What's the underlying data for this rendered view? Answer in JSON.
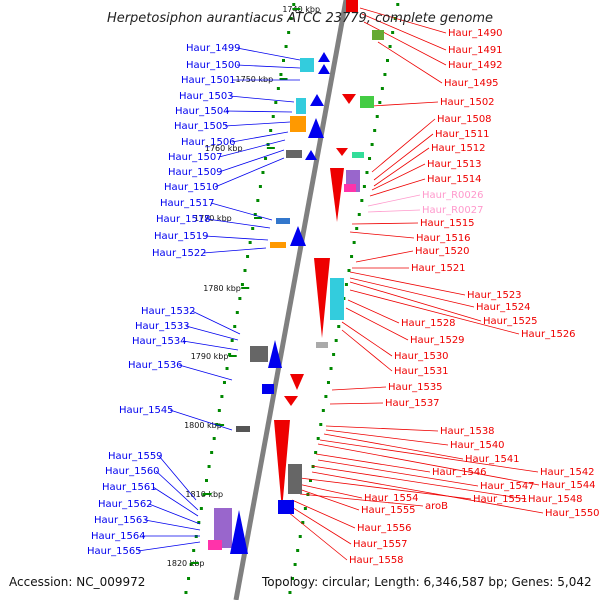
{
  "title": "Herpetosiphon aurantiacus ATCC 23779, complete genome",
  "footer": {
    "accession": "Accession: NC_009972",
    "summary": "Topology: circular; Length: 6,346,587 bp; Genes: 5,042"
  },
  "ruler": [
    "1740 kbp",
    "1750 kbp",
    "1760 kbp",
    "1770 kbp",
    "1780 kbp",
    "1790 kbp",
    "1800 kbp",
    "1810 kbp",
    "1820 kbp"
  ],
  "colors": {
    "reverse_strand": "#0000ee",
    "forward_strand": "#ee0000",
    "rna": "#ff99cc",
    "backbone": "#808080",
    "tick": "#008800"
  },
  "left_genes": [
    "Haur_1499",
    "Haur_1500",
    "Haur_1501",
    "Haur_1503",
    "Haur_1504",
    "Haur_1505",
    "Haur_1506",
    "Haur_1507",
    "Haur_1509",
    "Haur_1510",
    "Haur_1517",
    "Haur_1518",
    "Haur_1519",
    "Haur_1522",
    "Haur_1532",
    "Haur_1533",
    "Haur_1534",
    "Haur_1536",
    "Haur_1545",
    "Haur_1559",
    "Haur_1560",
    "Haur_1561",
    "Haur_1562",
    "Haur_1563",
    "Haur_1564",
    "Haur_1565"
  ],
  "right_genes": [
    "Haur_1490",
    "Haur_1491",
    "Haur_1492",
    "Haur_1495",
    "Haur_1502",
    "Haur_1508",
    "Haur_1511",
    "Haur_1512",
    "Haur_1513",
    "Haur_1514",
    "Haur_R0026",
    "Haur_R0027",
    "Haur_1515",
    "Haur_1516",
    "Haur_1520",
    "Haur_1521",
    "Haur_1523",
    "Haur_1524",
    "Haur_1525",
    "Haur_1526",
    "Haur_1528",
    "Haur_1529",
    "Haur_1530",
    "Haur_1531",
    "Haur_1535",
    "Haur_1537",
    "Haur_1538",
    "Haur_1540",
    "Haur_1541",
    "Haur_1542",
    "Haur_1544",
    "Haur_1546",
    "Haur_1547",
    "Haur_1548",
    "Haur_1550",
    "Haur_1551",
    "Haur_1554",
    "Haur_1555",
    "aroB",
    "Haur_1556",
    "Haur_1557",
    "Haur_1558"
  ]
}
